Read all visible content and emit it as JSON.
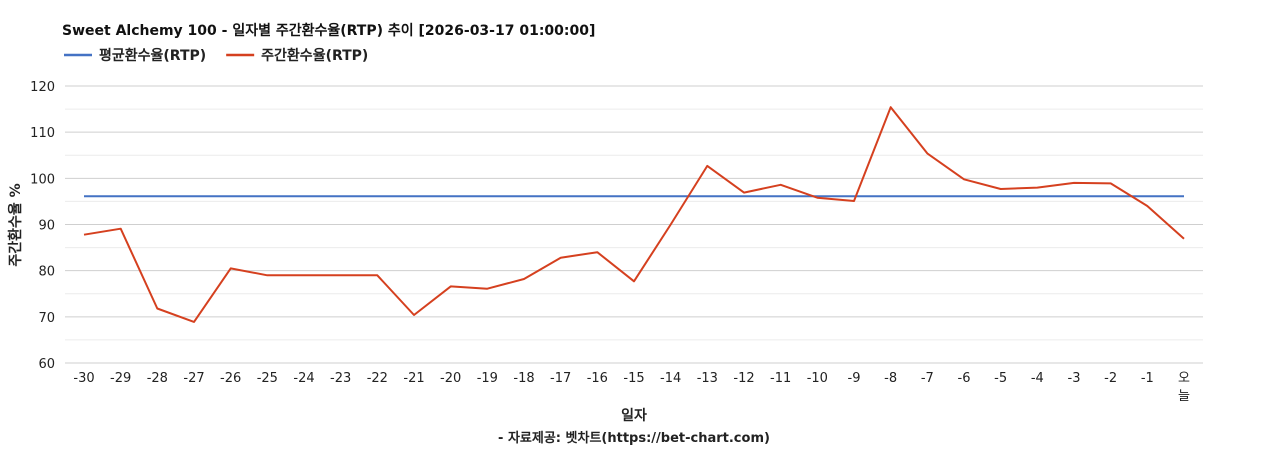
{
  "chart_data": {
    "type": "line",
    "title": "Sweet Alchemy 100 - 일자별 주간환수율(RTP) 추이 [2026-03-17 01:00:00]",
    "xlabel": "일자",
    "ylabel": "주간환수율 %",
    "ylim": [
      60,
      120
    ],
    "yticks": [
      60,
      70,
      80,
      90,
      100,
      110,
      120
    ],
    "categories": [
      "-30",
      "-29",
      "-28",
      "-27",
      "-26",
      "-25",
      "-24",
      "-23",
      "-22",
      "-21",
      "-20",
      "-19",
      "-18",
      "-17",
      "-16",
      "-15",
      "-14",
      "-13",
      "-12",
      "-11",
      "-10",
      "-9",
      "-8",
      "-7",
      "-6",
      "-5",
      "-4",
      "-3",
      "-2",
      "-1",
      "오늘"
    ],
    "legend_position": "top-left",
    "grid": true,
    "series": [
      {
        "name": "평균환수율(RTP)",
        "color": "#4472c4",
        "values": [
          96.1,
          96.1,
          96.1,
          96.1,
          96.1,
          96.1,
          96.1,
          96.1,
          96.1,
          96.1,
          96.1,
          96.1,
          96.1,
          96.1,
          96.1,
          96.1,
          96.1,
          96.1,
          96.1,
          96.1,
          96.1,
          96.1,
          96.1,
          96.1,
          96.1,
          96.1,
          96.1,
          96.1,
          96.1,
          96.1,
          96.1
        ]
      },
      {
        "name": "주간환수율(RTP)",
        "color": "#d5401f",
        "values": [
          87.8,
          89.1,
          71.8,
          68.9,
          80.5,
          79.0,
          79.0,
          79.0,
          79.0,
          70.4,
          76.6,
          76.1,
          78.2,
          82.8,
          84.0,
          77.7,
          90.0,
          102.7,
          96.9,
          98.6,
          95.8,
          95.1,
          115.4,
          105.4,
          99.8,
          97.7,
          98.0,
          99.0,
          98.9,
          94.0,
          86.9
        ]
      }
    ]
  },
  "source": "- 자료제공: 벳차트(https://bet-chart.com)"
}
